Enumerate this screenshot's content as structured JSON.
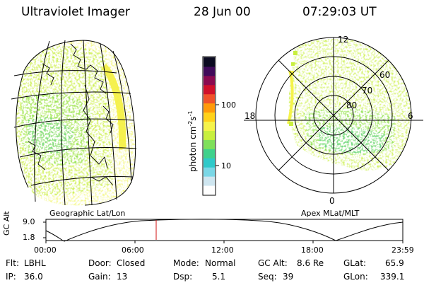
{
  "header": {
    "title": "Ultraviolet Imager",
    "date": "28 Jun 00",
    "time": "07:29:03 UT"
  },
  "colorbar": {
    "unit_label": "photon cm",
    "unit_exp1": "-2",
    "unit_s": "s",
    "unit_exp2": "-1",
    "ticks": [
      {
        "label": "100",
        "value": 100
      },
      {
        "label": "10",
        "value": 10
      }
    ],
    "colors": [
      "#ffffff",
      "#cfe6f0",
      "#7ad7e6",
      "#2fc9c9",
      "#3fd18c",
      "#7fe05a",
      "#c8ef3e",
      "#f5f34a",
      "#ffd21a",
      "#ff9a0a",
      "#f0522a",
      "#d0102a",
      "#8a0a50",
      "#400a5a",
      "#0a0a20"
    ]
  },
  "geo_panel": {
    "caption": "Geographic Lat/Lon"
  },
  "polar_panel": {
    "caption": "Apex  MLat/MLT",
    "mlt_labels": {
      "top": "12",
      "left": "18",
      "right": "6",
      "bottom": "0"
    },
    "lat_labels": [
      "60",
      "70",
      "80"
    ]
  },
  "altitude_plot": {
    "ylabel": "GC Alt",
    "yticks": [
      "9.0",
      "1.8"
    ],
    "xticks": [
      "00:00",
      "06:00",
      "12:00",
      "18:00",
      "23:59"
    ],
    "current_time_marker": "07:29"
  },
  "footer": {
    "flt_label": "Flt:",
    "flt_value": "LBHL",
    "ip_label": "IP:",
    "ip_value": "36.0",
    "door_label": "Door:",
    "door_value": "Closed",
    "gain_label": "Gain:",
    "gain_value": "13",
    "mode_label": "Mode:",
    "mode_value": "Normal",
    "dsp_label": "Dsp:",
    "dsp_value": "5.1",
    "gcalt_label": "GC Alt:",
    "gcalt_value": "8.6 Re",
    "seq_label": "Seq:",
    "seq_value": "39",
    "glat_label": "GLat:",
    "glat_value": "65.9",
    "glon_label": "GLon:",
    "glon_value": "339.1"
  }
}
